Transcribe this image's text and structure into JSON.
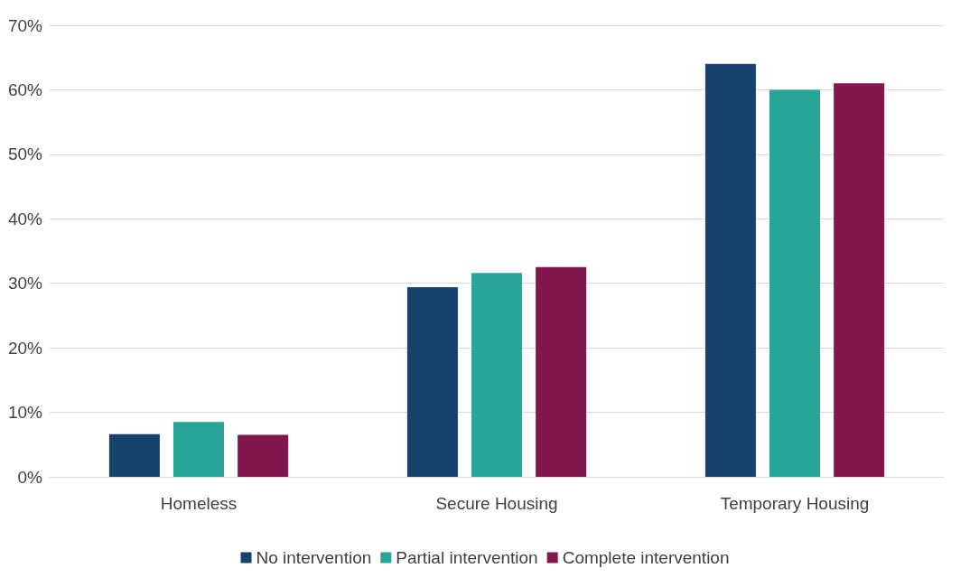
{
  "chart_data": {
    "type": "bar",
    "categories": [
      "Homeless",
      "Secure Housing",
      "Temporary Housing"
    ],
    "series": [
      {
        "name": "No intervention",
        "color": "#15436b",
        "values": [
          6.6,
          29.4,
          64
        ]
      },
      {
        "name": "Partial intervention",
        "color": "#29a498",
        "values": [
          8.5,
          31.6,
          60
        ]
      },
      {
        "name": "Complete intervention",
        "color": "#82174d",
        "values": [
          6.5,
          32.5,
          61
        ]
      }
    ],
    "ylim": [
      0,
      70
    ],
    "yticks": [
      {
        "value": 0,
        "label": "0%"
      },
      {
        "value": 10,
        "label": "10%"
      },
      {
        "value": 20,
        "label": "20%"
      },
      {
        "value": 30,
        "label": "30%"
      },
      {
        "value": 40,
        "label": "40%"
      },
      {
        "value": 50,
        "label": "50%"
      },
      {
        "value": 60,
        "label": "60%"
      },
      {
        "value": 70,
        "label": "70%"
      }
    ],
    "grid": "y",
    "legend": "bottom"
  }
}
